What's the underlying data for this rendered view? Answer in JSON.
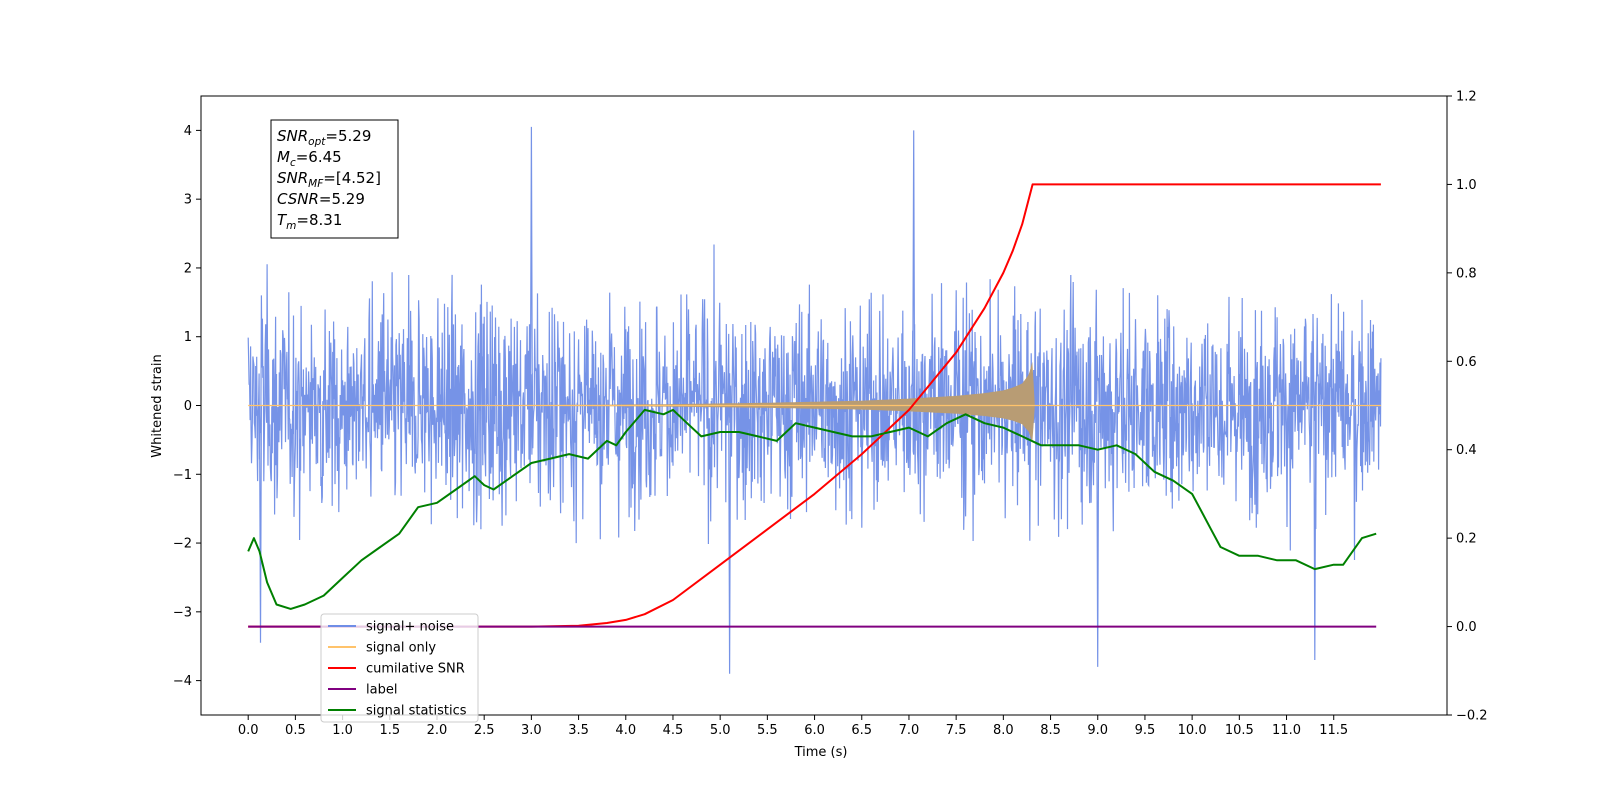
{
  "chart_data": {
    "type": "line",
    "xlabel": "Time (s)",
    "ylabel": "Whitened strain",
    "xlim": [
      -0.5,
      12.7
    ],
    "ylim": [
      -4.5,
      4.5
    ],
    "y2lim": [
      -0.2,
      1.2
    ],
    "x_ticks": [
      0.0,
      0.5,
      1.0,
      1.5,
      2.0,
      2.5,
      3.0,
      3.5,
      4.0,
      4.5,
      5.0,
      5.5,
      6.0,
      6.5,
      7.0,
      7.5,
      8.0,
      8.5,
      9.0,
      9.5,
      10.0,
      10.5,
      11.0,
      11.5
    ],
    "x_tick_labels": [
      "0.0",
      "0.5",
      "1.0",
      "1.5",
      "2.0",
      "2.5",
      "3.0",
      "3.5",
      "4.0",
      "4.5",
      "5.0",
      "5.5",
      "6.0",
      "6.5",
      "7.0",
      "7.5",
      "8.0",
      "8.5",
      "9.0",
      "9.5",
      "10.0",
      "10.5",
      "11.0",
      "11.5"
    ],
    "y_ticks": [
      -4,
      -3,
      -2,
      -1,
      0,
      1,
      2,
      3,
      4
    ],
    "y_tick_labels": [
      "−4",
      "−3",
      "−2",
      "−1",
      "0",
      "1",
      "2",
      "3",
      "4"
    ],
    "y2_ticks": [
      -0.2,
      0.0,
      0.2,
      0.4,
      0.6,
      0.8,
      1.0,
      1.2
    ],
    "y2_tick_labels": [
      "−0.2",
      "0.0",
      "0.2",
      "0.4",
      "0.6",
      "0.8",
      "1.0",
      "1.2"
    ],
    "grid": false,
    "legend_position": "lower-left",
    "colors": {
      "noise": "#6f8de6",
      "signal": "#ffc36b",
      "signal_fill": "#b89c74",
      "cumulative_snr": "#ff0000",
      "label": "#800080",
      "statistics": "#008000"
    },
    "stats_box": {
      "lines": [
        {
          "main": "SNR",
          "sub": "opt",
          "value": "=5.29"
        },
        {
          "main": "M",
          "sub": "c",
          "value": "=6.45"
        },
        {
          "main": "SNR",
          "sub": "MF",
          "value": "=[4.52]"
        },
        {
          "main": "CSNR",
          "sub": "",
          "value": "=5.29"
        },
        {
          "main": "T",
          "sub": "m",
          "value": "=8.31"
        }
      ]
    },
    "legend": [
      {
        "label": "signal+ noise",
        "color": "#6f8de6"
      },
      {
        "label": "signal only",
        "color": "#ffc36b"
      },
      {
        "label": "cumilative SNR",
        "color": "#ff0000"
      },
      {
        "label": "label",
        "color": "#800080"
      },
      {
        "label": "signal statistics",
        "color": "#008000"
      }
    ],
    "series": [
      {
        "name": "signal+ noise",
        "axis": "left",
        "x_range": [
          0.0,
          12.0
        ],
        "typical_range": [
          -2.5,
          2.7
        ],
        "extremes": [
          [
            3.0,
            4.05
          ],
          [
            7.05,
            4.0
          ],
          [
            5.1,
            -3.9
          ],
          [
            0.13,
            -3.45
          ],
          [
            9.0,
            -3.8
          ],
          [
            11.3,
            -3.7
          ]
        ]
      },
      {
        "name": "signal only",
        "axis": "left",
        "envelope": {
          "x": [
            0.0,
            2.0,
            3.5,
            4.5,
            5.5,
            6.5,
            7.0,
            7.5,
            7.8,
            8.0,
            8.1,
            8.2,
            8.27,
            8.31,
            8.33,
            12.0
          ],
          "amp": [
            0.0,
            0.005,
            0.01,
            0.02,
            0.04,
            0.07,
            0.1,
            0.14,
            0.18,
            0.22,
            0.26,
            0.32,
            0.45,
            0.65,
            0.0,
            0.0
          ]
        }
      },
      {
        "name": "cumilative SNR",
        "axis": "right",
        "x": [
          0.0,
          3.0,
          3.5,
          3.8,
          4.0,
          4.2,
          4.5,
          5.0,
          5.5,
          6.0,
          6.5,
          7.0,
          7.5,
          7.8,
          8.0,
          8.1,
          8.2,
          8.31,
          12.0
        ],
        "y": [
          0.0,
          0.0,
          0.002,
          0.008,
          0.015,
          0.028,
          0.06,
          0.14,
          0.22,
          0.3,
          0.39,
          0.49,
          0.62,
          0.72,
          0.8,
          0.85,
          0.91,
          1.0,
          1.0
        ]
      },
      {
        "name": "label",
        "axis": "right",
        "x": [
          0.0,
          11.95
        ],
        "y": [
          0.0,
          0.0
        ]
      },
      {
        "name": "signal statistics",
        "axis": "right",
        "x": [
          0.0,
          0.06,
          0.12,
          0.2,
          0.3,
          0.45,
          0.6,
          0.8,
          1.0,
          1.2,
          1.4,
          1.6,
          1.8,
          2.0,
          2.2,
          2.4,
          2.5,
          2.6,
          2.8,
          3.0,
          3.2,
          3.4,
          3.6,
          3.8,
          3.9,
          4.0,
          4.2,
          4.4,
          4.5,
          4.6,
          4.8,
          5.0,
          5.2,
          5.4,
          5.6,
          5.8,
          6.0,
          6.2,
          6.4,
          6.6,
          6.8,
          7.0,
          7.2,
          7.4,
          7.6,
          7.8,
          8.0,
          8.2,
          8.4,
          8.6,
          8.8,
          9.0,
          9.2,
          9.4,
          9.6,
          9.8,
          10.0,
          10.1,
          10.2,
          10.3,
          10.5,
          10.7,
          10.9,
          11.1,
          11.3,
          11.5,
          11.6,
          11.8,
          11.95
        ],
        "y": [
          0.17,
          0.2,
          0.17,
          0.1,
          0.05,
          0.04,
          0.05,
          0.07,
          0.11,
          0.15,
          0.18,
          0.21,
          0.27,
          0.28,
          0.31,
          0.34,
          0.32,
          0.31,
          0.34,
          0.37,
          0.38,
          0.39,
          0.38,
          0.42,
          0.41,
          0.44,
          0.49,
          0.48,
          0.49,
          0.47,
          0.43,
          0.44,
          0.44,
          0.43,
          0.42,
          0.46,
          0.45,
          0.44,
          0.43,
          0.43,
          0.44,
          0.45,
          0.43,
          0.46,
          0.48,
          0.46,
          0.45,
          0.43,
          0.41,
          0.41,
          0.41,
          0.4,
          0.41,
          0.39,
          0.35,
          0.33,
          0.3,
          0.26,
          0.22,
          0.18,
          0.16,
          0.16,
          0.15,
          0.15,
          0.13,
          0.14,
          0.14,
          0.2,
          0.21
        ]
      }
    ]
  }
}
